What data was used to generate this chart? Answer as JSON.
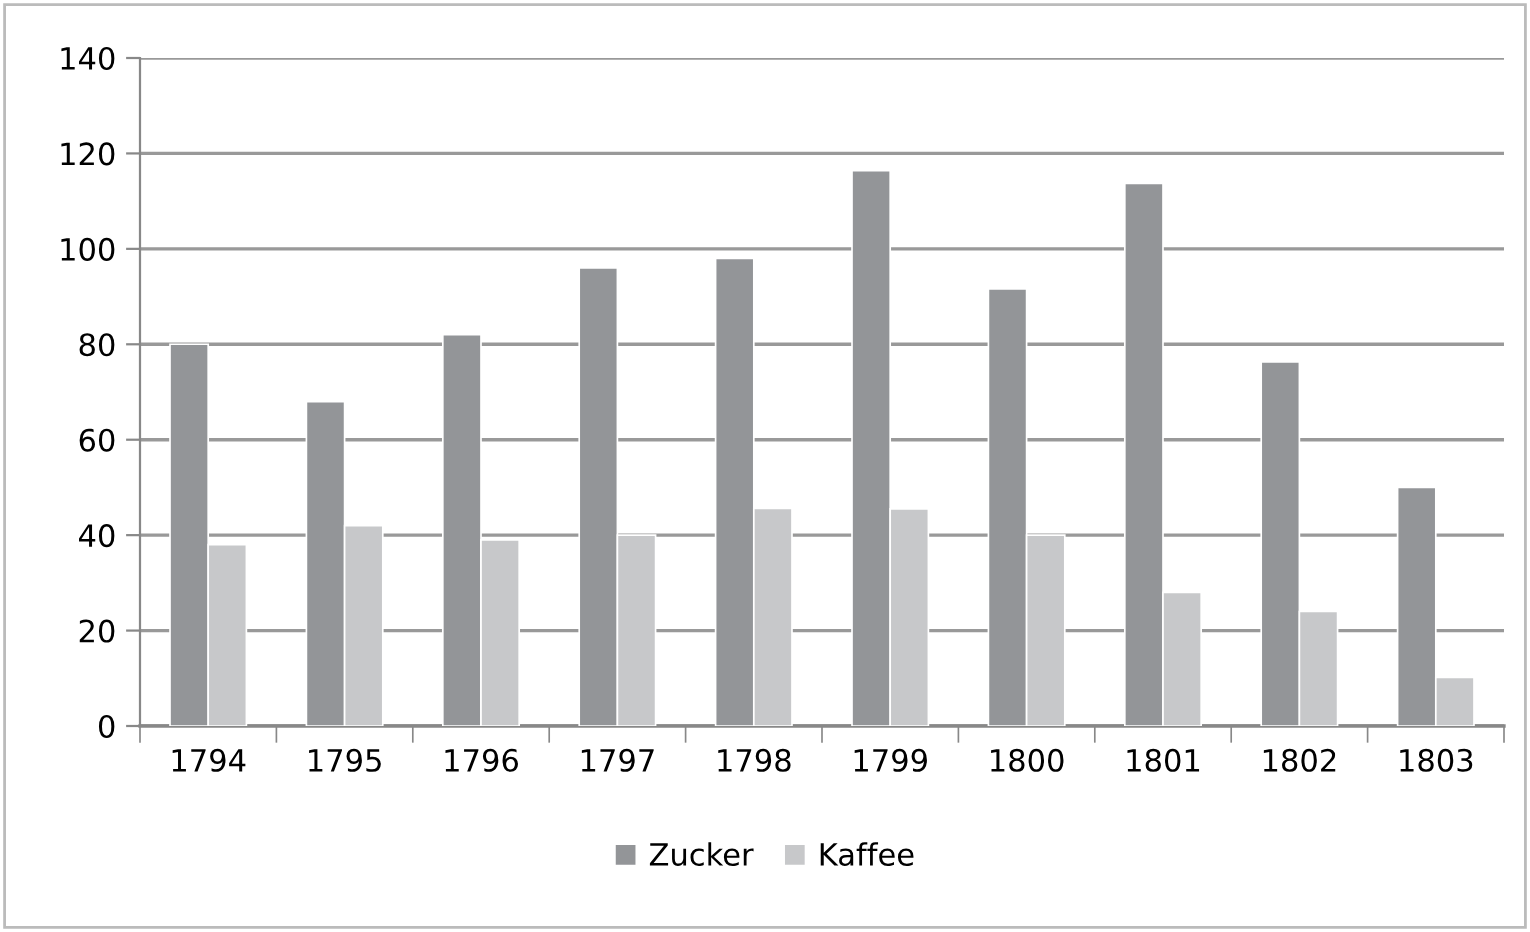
{
  "chart_data": {
    "type": "bar",
    "categories": [
      "1794",
      "1795",
      "1796",
      "1797",
      "1798",
      "1799",
      "1800",
      "1801",
      "1802",
      "1803"
    ],
    "series": [
      {
        "name": "Zucker",
        "color": "#939598",
        "values": [
          80,
          68,
          82,
          96,
          98,
          116.4,
          91.6,
          113.7,
          76.3,
          50
        ]
      },
      {
        "name": "Kaffee",
        "color": "#c7c8ca",
        "values": [
          38,
          42,
          39,
          40,
          45.6,
          45.5,
          40,
          28,
          24,
          10.2
        ]
      }
    ],
    "ylim": [
      0,
      140
    ],
    "yticks": [
      0,
      20,
      40,
      60,
      80,
      100,
      120,
      140
    ],
    "grid": "y",
    "legend": "bottom"
  }
}
